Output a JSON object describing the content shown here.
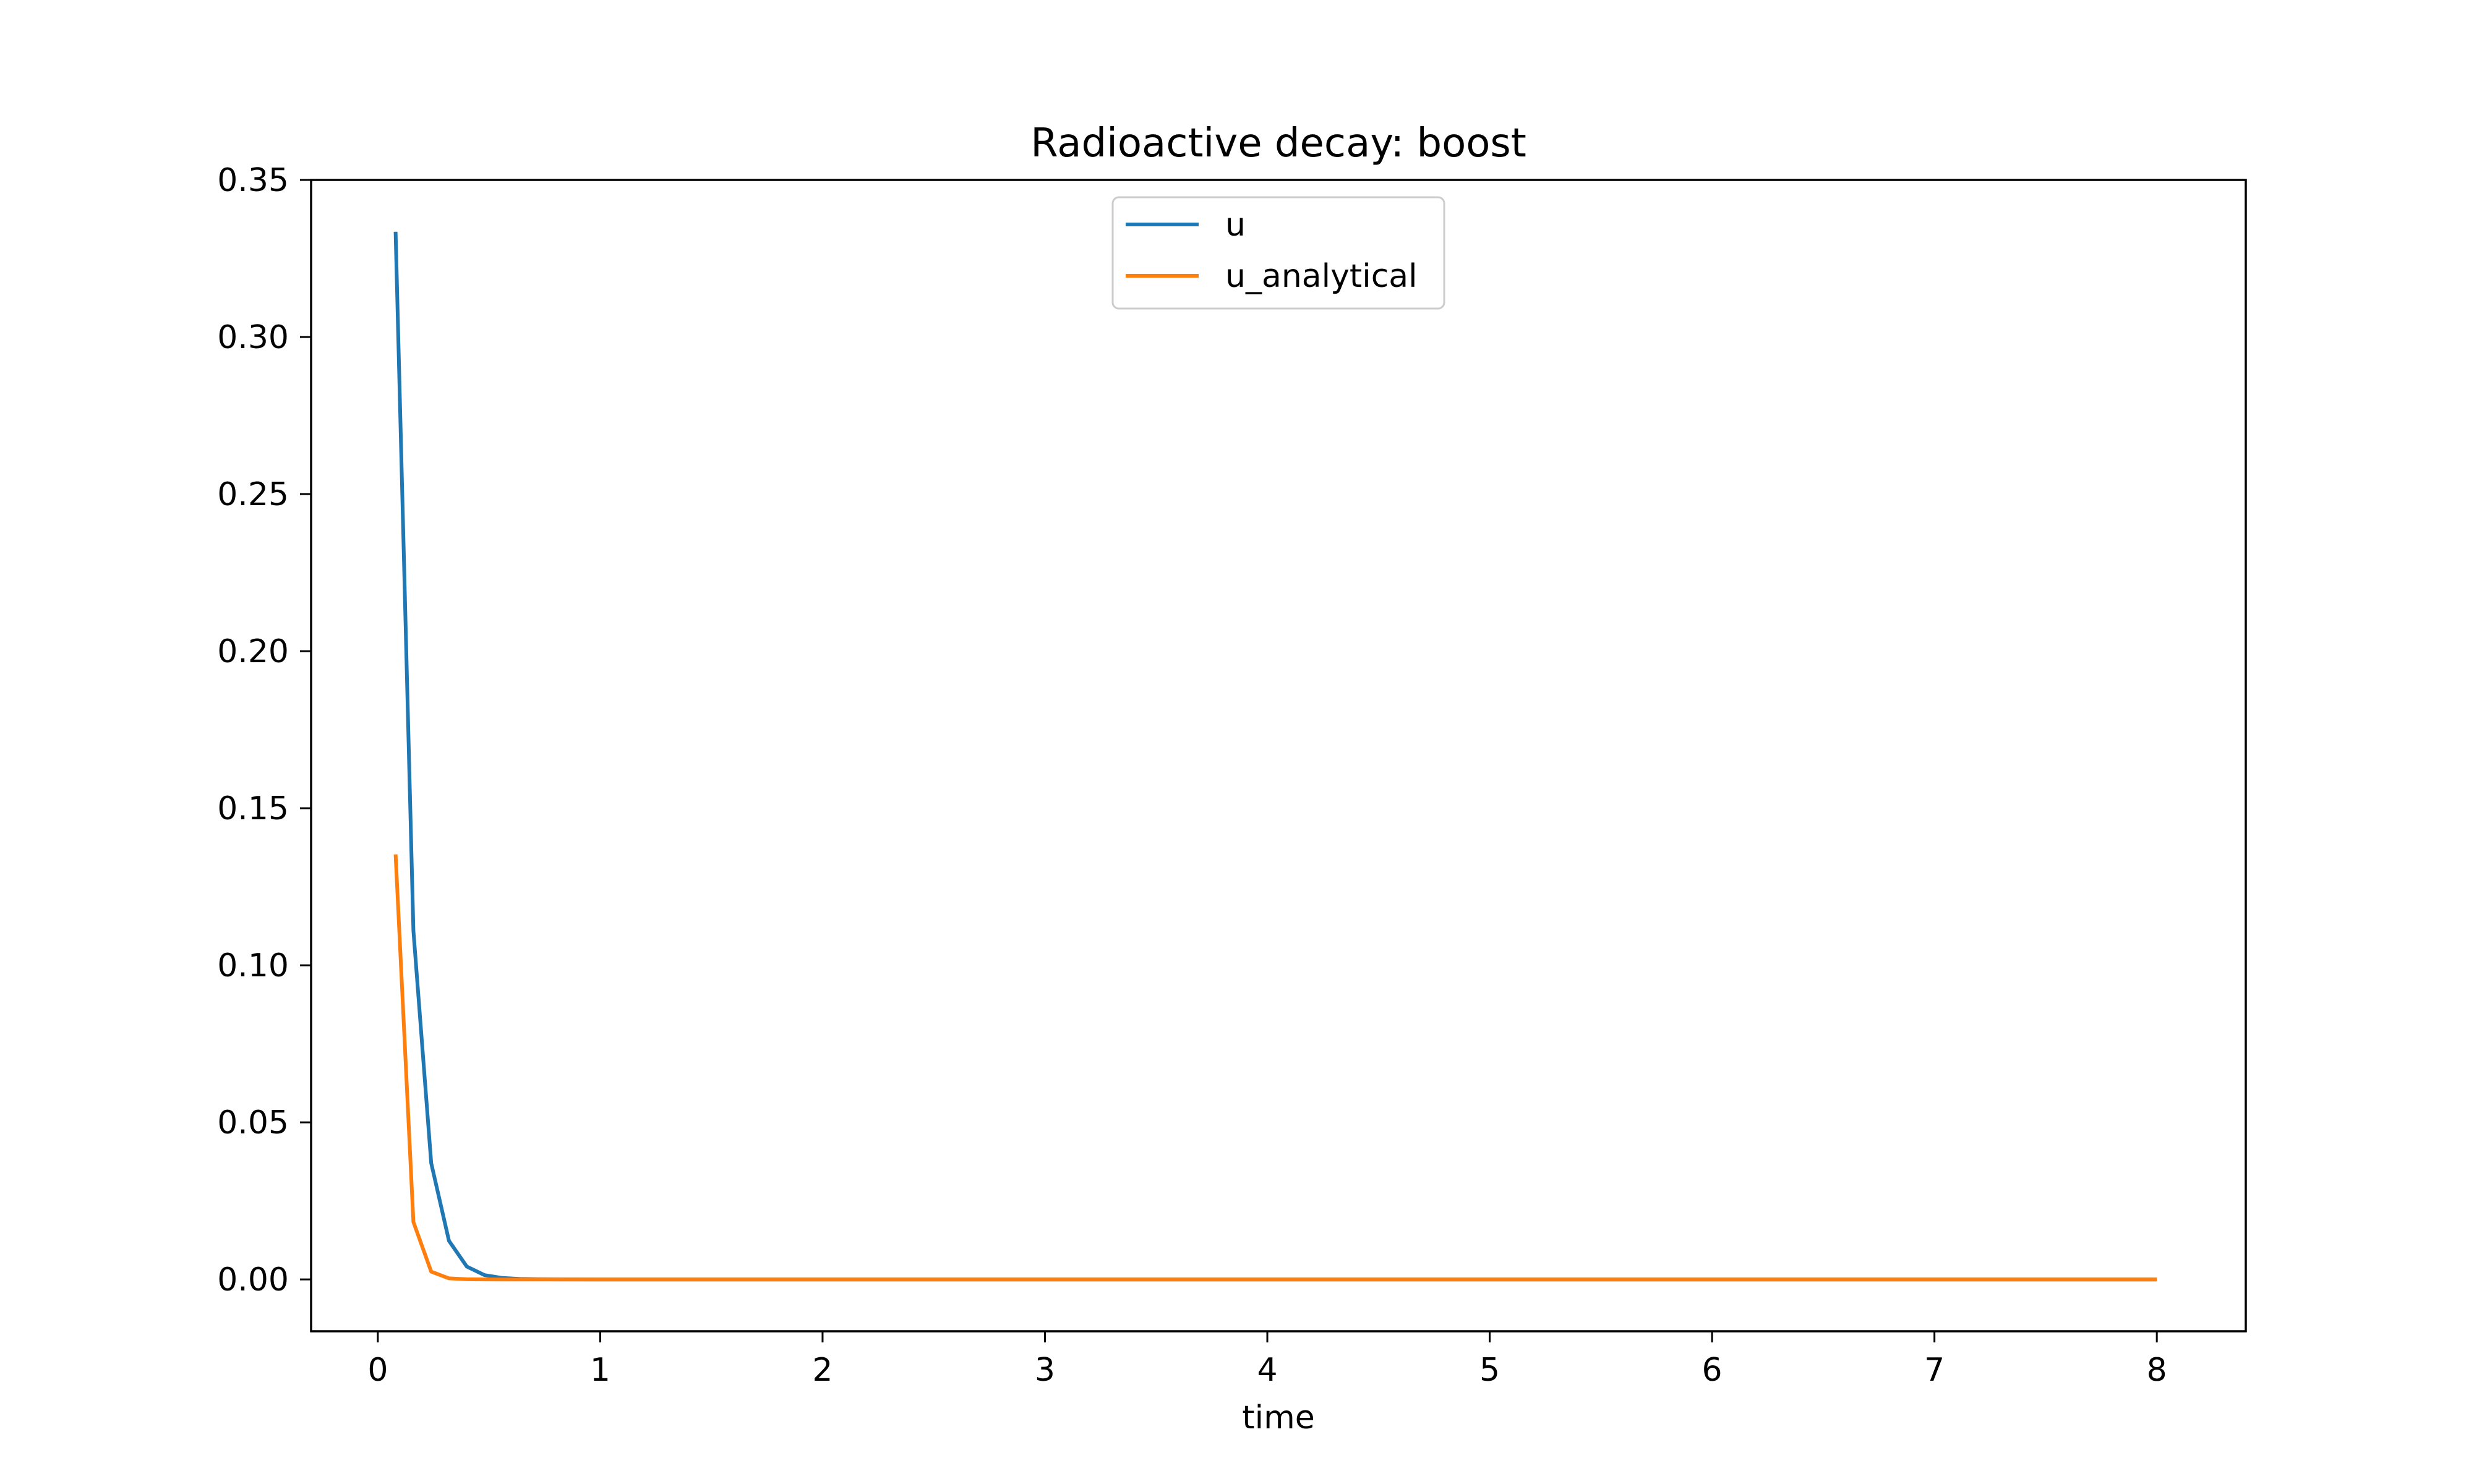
{
  "chart_data": {
    "type": "line",
    "title": "Radioactive decay: boost",
    "xlabel": "time",
    "ylabel": "",
    "xlim": [
      -0.3,
      8.4
    ],
    "ylim": [
      -0.0165,
      0.35
    ],
    "xticks": [
      0,
      1,
      2,
      3,
      4,
      5,
      6,
      7,
      8
    ],
    "yticks": [
      0.0,
      0.05,
      0.1,
      0.15,
      0.2,
      0.25,
      0.3,
      0.35
    ],
    "ytick_labels": [
      "0.00",
      "0.05",
      "0.10",
      "0.15",
      "0.20",
      "0.25",
      "0.30",
      "0.35"
    ],
    "xtick_labels": [
      "0",
      "1",
      "2",
      "3",
      "4",
      "5",
      "6",
      "7",
      "8"
    ],
    "grid": false,
    "legend_position": "upper center",
    "series": [
      {
        "name": "u",
        "color": "#1f77b4",
        "x": [
          0.08,
          0.16,
          0.24,
          0.32,
          0.4,
          0.48,
          0.56,
          0.64,
          0.72,
          0.8,
          1.0,
          2.0,
          3.0,
          4.0,
          5.0,
          6.0,
          7.0,
          8.0
        ],
        "y": [
          0.3335,
          0.111,
          0.037,
          0.0123,
          0.0041,
          0.00137,
          0.00046,
          0.00015,
          5e-05,
          2e-05,
          0.0,
          0.0,
          0.0,
          0.0,
          0.0,
          0.0,
          0.0,
          0.0
        ]
      },
      {
        "name": "u_analytical",
        "color": "#ff7f0e",
        "x": [
          0.08,
          0.16,
          0.24,
          0.32,
          0.4,
          0.48,
          0.56,
          0.64,
          1.0,
          2.0,
          3.0,
          4.0,
          5.0,
          6.0,
          7.0,
          8.0
        ],
        "y": [
          0.1353,
          0.0183,
          0.00248,
          0.00034,
          5e-05,
          6e-06,
          0.0,
          0.0,
          0.0,
          0.0,
          0.0,
          0.0,
          0.0,
          0.0,
          0.0,
          0.0
        ]
      }
    ]
  }
}
